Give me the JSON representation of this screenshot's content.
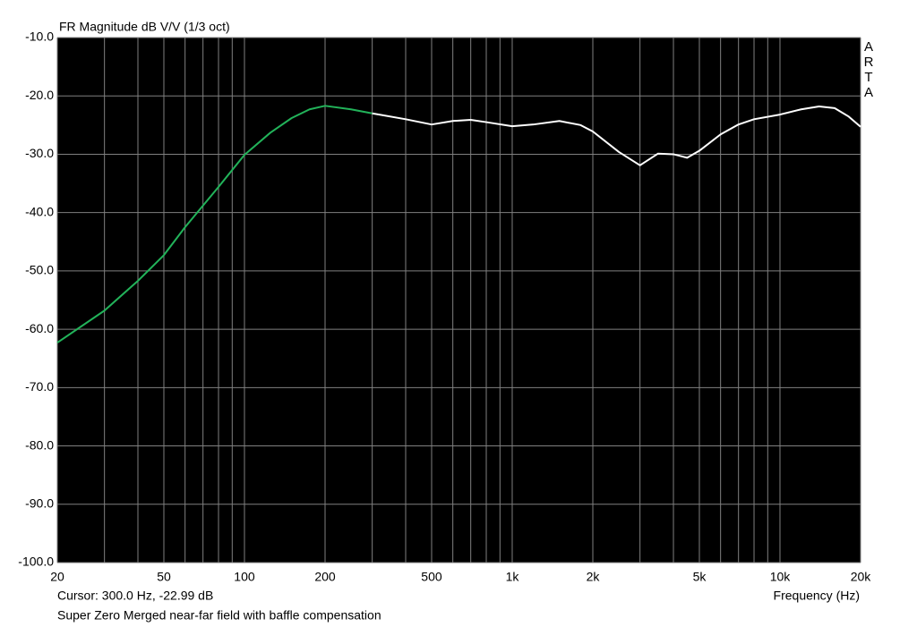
{
  "chart_data": {
    "type": "line",
    "title": "FR Magnitude dB V/V (1/3 oct)",
    "watermark": "ARTA",
    "cursor_text": "Cursor: 300.0 Hz, -22.99 dB",
    "xlabel": "Frequency (Hz)",
    "footer": "Super Zero Merged near-far field with baffle compensation",
    "xscale": "log",
    "grid": true,
    "background": "#000000",
    "grid_color": "#808080",
    "xlim": [
      20,
      20000
    ],
    "ylim": [
      -100,
      -10
    ],
    "xticks": [
      20,
      50,
      100,
      200,
      500,
      {
        "value": 1000,
        "label": "1k"
      },
      {
        "value": 2000,
        "label": "2k"
      },
      {
        "value": 5000,
        "label": "5k"
      },
      {
        "value": 10000,
        "label": "10k"
      },
      {
        "value": 20000,
        "label": "20k"
      }
    ],
    "xminorticks": [
      30,
      40,
      60,
      70,
      80,
      90,
      300,
      400,
      600,
      700,
      800,
      900,
      3000,
      4000,
      6000,
      7000,
      8000,
      9000
    ],
    "yticks": [
      {
        "value": -10,
        "label": "-10.0"
      },
      {
        "value": -20,
        "label": "-20.0"
      },
      {
        "value": -30,
        "label": "-30.0"
      },
      {
        "value": -40,
        "label": "-40.0"
      },
      {
        "value": -50,
        "label": "-50.0"
      },
      {
        "value": -60,
        "label": "-60.0"
      },
      {
        "value": -70,
        "label": "-70.0"
      },
      {
        "value": -80,
        "label": "-80.0"
      },
      {
        "value": -90,
        "label": "-90.0"
      },
      {
        "value": -100,
        "label": "-100.0"
      }
    ],
    "series": [
      {
        "color": "#22b35a",
        "x": [
          20,
          30,
          40,
          50,
          60,
          70,
          80,
          100,
          125,
          150,
          175,
          200,
          250,
          300
        ],
        "values": [
          -62.3,
          -56.8,
          -51.7,
          -47.3,
          -42.5,
          -38.8,
          -35.6,
          -30.1,
          -26.3,
          -23.8,
          -22.3,
          -21.7,
          -22.3,
          -22.99
        ]
      },
      {
        "color": "#ffffff",
        "x": [
          300,
          400,
          500,
          600,
          700,
          800,
          1000,
          1200,
          1500,
          1800,
          2000,
          2500,
          3000,
          3500,
          4000,
          4500,
          5000,
          6000,
          7000,
          8000,
          10000,
          12000,
          14000,
          16000,
          18000,
          20000
        ],
        "values": [
          -22.99,
          -24.0,
          -24.9,
          -24.3,
          -24.1,
          -24.5,
          -25.2,
          -24.9,
          -24.3,
          -25.0,
          -26.1,
          -29.6,
          -31.9,
          -29.9,
          -30.0,
          -30.6,
          -29.4,
          -26.6,
          -24.9,
          -24.0,
          -23.2,
          -22.3,
          -21.8,
          -22.1,
          -23.5,
          -25.3
        ]
      }
    ]
  }
}
